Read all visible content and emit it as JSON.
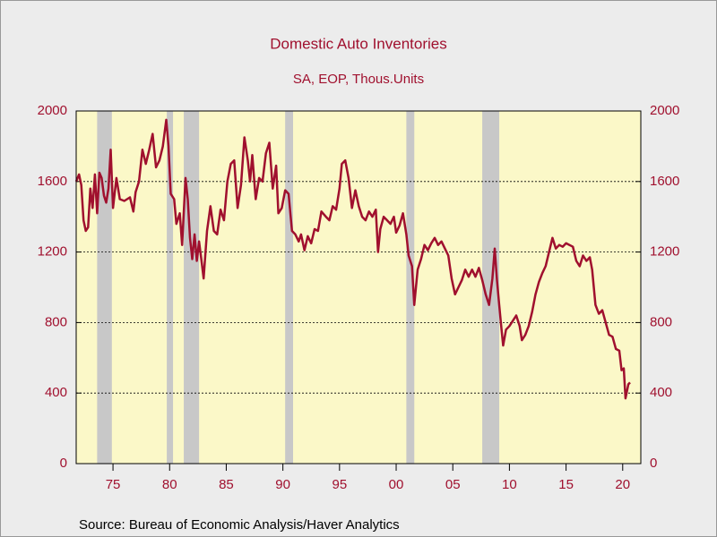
{
  "chart_data": {
    "type": "line",
    "title": "Domestic Auto Inventories",
    "subtitle": "SA, EOP, Thous.Units",
    "source": "Source:  Bureau of Economic Analysis/Haver Analytics",
    "xlim": [
      1971.75,
      2021.6
    ],
    "xticks": [
      {
        "value": 1975,
        "label": "75"
      },
      {
        "value": 1980,
        "label": "80"
      },
      {
        "value": 1985,
        "label": "85"
      },
      {
        "value": 1990,
        "label": "90"
      },
      {
        "value": 1995,
        "label": "95"
      },
      {
        "value": 2000,
        "label": "00"
      },
      {
        "value": 2005,
        "label": "05"
      },
      {
        "value": 2010,
        "label": "10"
      },
      {
        "value": 2015,
        "label": "15"
      },
      {
        "value": 2020,
        "label": "20"
      }
    ],
    "ylim": [
      0,
      2000
    ],
    "yticks": [
      0,
      400,
      800,
      1200,
      1600,
      2000
    ],
    "y2lim": [
      0,
      2000
    ],
    "y2ticks": [
      0,
      400,
      800,
      1200,
      1600,
      2000
    ],
    "grid": true,
    "recessions": [
      [
        1973.6,
        1974.9
      ],
      [
        1979.75,
        1980.3
      ],
      [
        1981.25,
        1982.6
      ],
      [
        1990.2,
        1990.9
      ],
      [
        2000.9,
        2001.6
      ],
      [
        2007.6,
        2009.1
      ]
    ],
    "recession_color": "#c8c8c8",
    "series": [
      {
        "color": "#a0102e",
        "x": [
          1971.75,
          1972.0,
          1972.2,
          1972.4,
          1972.6,
          1972.8,
          1973.0,
          1973.2,
          1973.4,
          1973.6,
          1973.8,
          1974.0,
          1974.2,
          1974.4,
          1974.6,
          1974.8,
          1975.0,
          1975.3,
          1975.6,
          1976.0,
          1976.5,
          1976.8,
          1977.0,
          1977.3,
          1977.6,
          1977.9,
          1978.2,
          1978.5,
          1978.8,
          1979.1,
          1979.4,
          1979.7,
          1979.9,
          1980.1,
          1980.4,
          1980.6,
          1980.9,
          1981.1,
          1981.4,
          1981.6,
          1981.8,
          1982.0,
          1982.2,
          1982.4,
          1982.6,
          1982.8,
          1983.0,
          1983.3,
          1983.6,
          1983.9,
          1984.2,
          1984.5,
          1984.8,
          1985.1,
          1985.4,
          1985.7,
          1986.0,
          1986.3,
          1986.6,
          1986.9,
          1987.1,
          1987.3,
          1987.6,
          1987.9,
          1988.2,
          1988.5,
          1988.8,
          1989.1,
          1989.4,
          1989.6,
          1989.9,
          1990.2,
          1990.5,
          1990.8,
          1991.1,
          1991.4,
          1991.6,
          1991.9,
          1992.2,
          1992.5,
          1992.8,
          1993.1,
          1993.4,
          1993.8,
          1994.1,
          1994.4,
          1994.7,
          1995.0,
          1995.2,
          1995.5,
          1995.8,
          1996.1,
          1996.4,
          1996.7,
          1997.0,
          1997.3,
          1997.6,
          1997.9,
          1998.2,
          1998.4,
          1998.6,
          1998.9,
          1999.2,
          1999.5,
          1999.8,
          2000.0,
          2000.3,
          2000.6,
          2000.9,
          2001.1,
          2001.4,
          2001.6,
          2001.9,
          2002.2,
          2002.5,
          2002.8,
          2003.1,
          2003.4,
          2003.7,
          2004.0,
          2004.3,
          2004.6,
          2004.9,
          2005.2,
          2005.5,
          2005.8,
          2006.1,
          2006.4,
          2006.7,
          2007.0,
          2007.3,
          2007.6,
          2007.9,
          2008.2,
          2008.5,
          2008.7,
          2008.9,
          2009.1,
          2009.3,
          2009.45,
          2009.7,
          2010.0,
          2010.3,
          2010.6,
          2010.9,
          2011.1,
          2011.4,
          2011.7,
          2012.0,
          2012.3,
          2012.6,
          2012.9,
          2013.2,
          2013.5,
          2013.8,
          2014.1,
          2014.4,
          2014.7,
          2015.0,
          2015.3,
          2015.6,
          2015.9,
          2016.2,
          2016.5,
          2016.8,
          2017.1,
          2017.3,
          2017.6,
          2017.9,
          2018.2,
          2018.5,
          2018.8,
          2019.1,
          2019.4,
          2019.7,
          2019.9,
          2020.1,
          2020.25,
          2020.5,
          2020.65
        ],
        "values": [
          1600,
          1640,
          1580,
          1380,
          1320,
          1340,
          1560,
          1450,
          1640,
          1420,
          1650,
          1620,
          1520,
          1480,
          1560,
          1780,
          1450,
          1620,
          1500,
          1490,
          1510,
          1430,
          1540,
          1600,
          1780,
          1700,
          1780,
          1870,
          1680,
          1720,
          1800,
          1950,
          1800,
          1530,
          1500,
          1360,
          1420,
          1240,
          1620,
          1500,
          1280,
          1160,
          1300,
          1150,
          1260,
          1160,
          1050,
          1320,
          1460,
          1320,
          1300,
          1440,
          1380,
          1600,
          1700,
          1720,
          1450,
          1580,
          1850,
          1720,
          1600,
          1750,
          1500,
          1620,
          1600,
          1760,
          1820,
          1560,
          1690,
          1420,
          1450,
          1550,
          1530,
          1320,
          1300,
          1260,
          1300,
          1210,
          1290,
          1250,
          1330,
          1320,
          1430,
          1400,
          1380,
          1460,
          1440,
          1560,
          1700,
          1720,
          1620,
          1450,
          1550,
          1460,
          1400,
          1380,
          1430,
          1400,
          1440,
          1200,
          1330,
          1400,
          1380,
          1360,
          1400,
          1310,
          1350,
          1420,
          1300,
          1180,
          1120,
          900,
          1100,
          1160,
          1240,
          1210,
          1250,
          1280,
          1240,
          1260,
          1220,
          1180,
          1050,
          960,
          1000,
          1040,
          1100,
          1060,
          1100,
          1060,
          1110,
          1040,
          960,
          900,
          1050,
          1220,
          1040,
          900,
          760,
          670,
          760,
          780,
          810,
          840,
          780,
          700,
          730,
          780,
          860,
          960,
          1030,
          1080,
          1120,
          1200,
          1280,
          1220,
          1240,
          1230,
          1250,
          1240,
          1230,
          1150,
          1120,
          1180,
          1150,
          1170,
          1100,
          900,
          850,
          870,
          800,
          730,
          720,
          650,
          640,
          530,
          540,
          370,
          450,
          460
        ]
      }
    ]
  }
}
